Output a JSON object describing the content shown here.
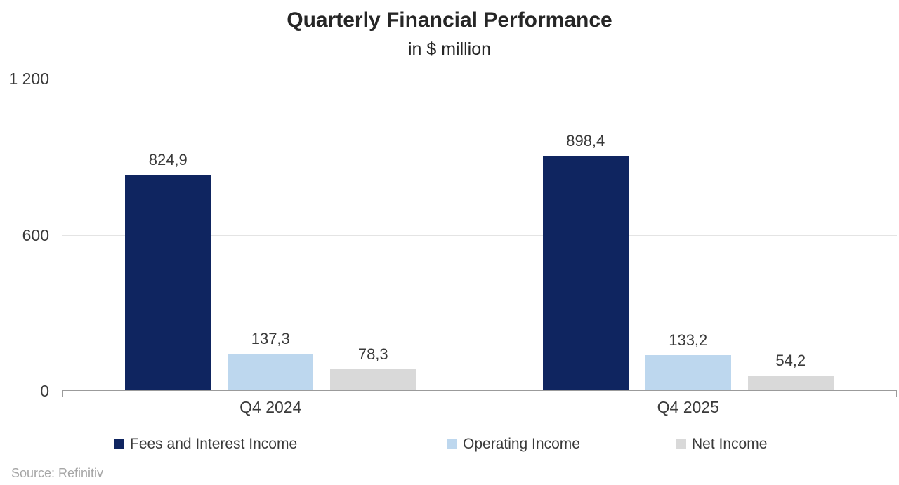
{
  "chart_data": {
    "type": "bar",
    "title": "Quarterly Financial Performance",
    "subtitle": "in $ million",
    "categories": [
      "Q4 2024",
      "Q4 2025"
    ],
    "series": [
      {
        "name": "Fees and Interest Income",
        "color": "#0f2560",
        "values": [
          824.9,
          898.4
        ],
        "labels": [
          "824,9",
          "898,4"
        ]
      },
      {
        "name": "Operating Income",
        "color": "#bdd7ee",
        "values": [
          137.3,
          133.2
        ],
        "labels": [
          "137,3",
          "133,2"
        ]
      },
      {
        "name": "Net Income",
        "color": "#d9d9d9",
        "values": [
          78.3,
          54.2
        ],
        "labels": [
          "78,3",
          "54,2"
        ]
      }
    ],
    "ylim": [
      0,
      1200
    ],
    "yticks": [
      {
        "value": 0,
        "label": "0"
      },
      {
        "value": 600,
        "label": "600"
      },
      {
        "value": 1200,
        "label": "1 200"
      }
    ],
    "grid": true,
    "legend_position": "bottom",
    "source": "Source: Refinitiv"
  }
}
